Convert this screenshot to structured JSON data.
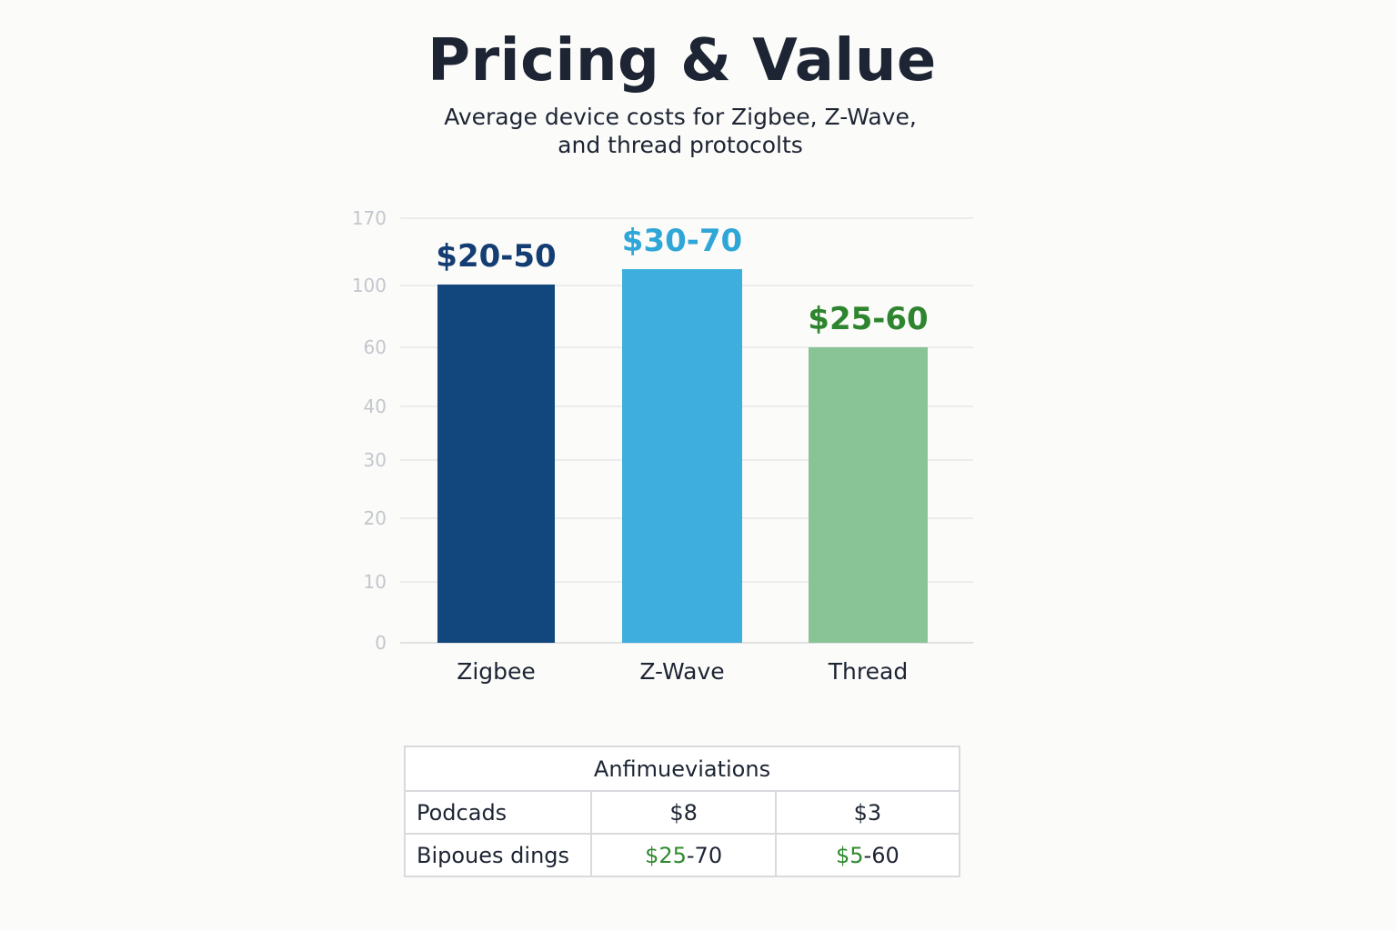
{
  "title": "Pricing & Value",
  "subtitle": [
    "Average device costs  for Zigbee, Z-Wave,",
    "and  thread protocolts"
  ],
  "chart_data": {
    "type": "bar",
    "title": "Pricing & Value",
    "subtitle": "Average device costs  for Zigbee, Z-Wave, and  thread protocolts",
    "categories": [
      "Zigbee",
      "Z-Wave",
      "Thread"
    ],
    "values": [
      101,
      117,
      60
    ],
    "value_labels": [
      "$20-50",
      "$30-70",
      "$25-60"
    ],
    "colors": [
      "#12477e",
      "#3daedd",
      "#89c497"
    ],
    "label_colors": [
      "#143e73",
      "#2fa6d8",
      "#2f852f"
    ],
    "y_ticks": [
      0,
      10,
      20,
      30,
      40,
      60,
      100,
      170
    ],
    "xlabel": "",
    "ylabel": "",
    "grid": true,
    "legend": "none"
  },
  "table": {
    "header": "Anfimueviations",
    "rows": [
      {
        "label": "Podcads",
        "cells": [
          {
            "green": "",
            "rest": "$8"
          },
          {
            "green": "",
            "rest": "$3"
          }
        ]
      },
      {
        "label": "Bipoues dings",
        "cells": [
          {
            "green": "$25",
            "rest": "-70"
          },
          {
            "green": "$5",
            "rest": "-60"
          }
        ]
      }
    ]
  }
}
